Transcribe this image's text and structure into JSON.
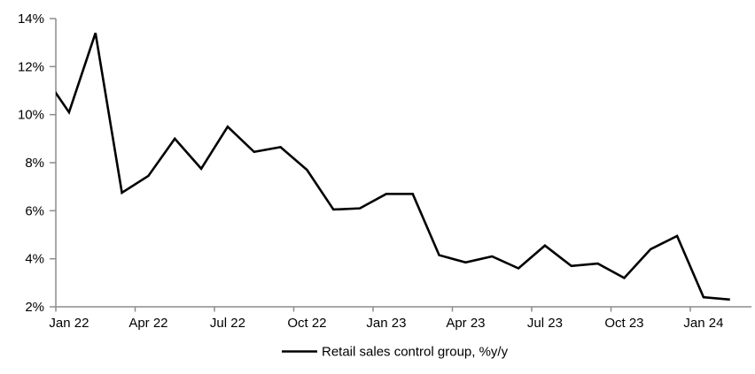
{
  "chart_data": {
    "type": "line",
    "title": "",
    "xlabel": "",
    "ylabel": "",
    "categories": [
      "Dec 21",
      "Jan 22",
      "Feb 22",
      "Mar 22",
      "Apr 22",
      "May 22",
      "Jun 22",
      "Jul 22",
      "Aug 22",
      "Sep 22",
      "Oct 22",
      "Nov 22",
      "Dec 22",
      "Jan 23",
      "Feb 23",
      "Mar 23",
      "Apr 23",
      "May 23",
      "Jun 23",
      "Jul 23",
      "Aug 23",
      "Sep 23",
      "Oct 23",
      "Nov 23",
      "Dec 23",
      "Jan 24",
      "Feb 24"
    ],
    "series": [
      {
        "name": "Retail sales control group, %y/y",
        "color": "#000000",
        "values": [
          11.7,
          10.1,
          13.4,
          6.75,
          7.45,
          9.0,
          7.75,
          9.5,
          8.45,
          8.65,
          7.7,
          6.05,
          6.1,
          6.7,
          6.7,
          4.15,
          3.85,
          4.1,
          3.6,
          4.55,
          3.7,
          3.8,
          3.2,
          4.4,
          4.95,
          2.4,
          2.3
        ]
      }
    ],
    "first_point_clipped_by_y_axis": true,
    "x_tick_labels": [
      "Jan 22",
      "Apr 22",
      "Jul 22",
      "Oct 22",
      "Jan 23",
      "Apr 23",
      "Jul 23",
      "Oct 23",
      "Jan 24"
    ],
    "x_tick_interval_months": 3,
    "y_tick_labels": [
      "2%",
      "4%",
      "6%",
      "8%",
      "10%",
      "12%",
      "14%"
    ],
    "ylim": [
      2,
      14
    ],
    "y_step": 2,
    "grid": false,
    "legend_position": "bottom-center"
  },
  "colors": {
    "line": "#000000",
    "axis": "#8c8c8c",
    "text": "#000000",
    "background": "#ffffff"
  }
}
